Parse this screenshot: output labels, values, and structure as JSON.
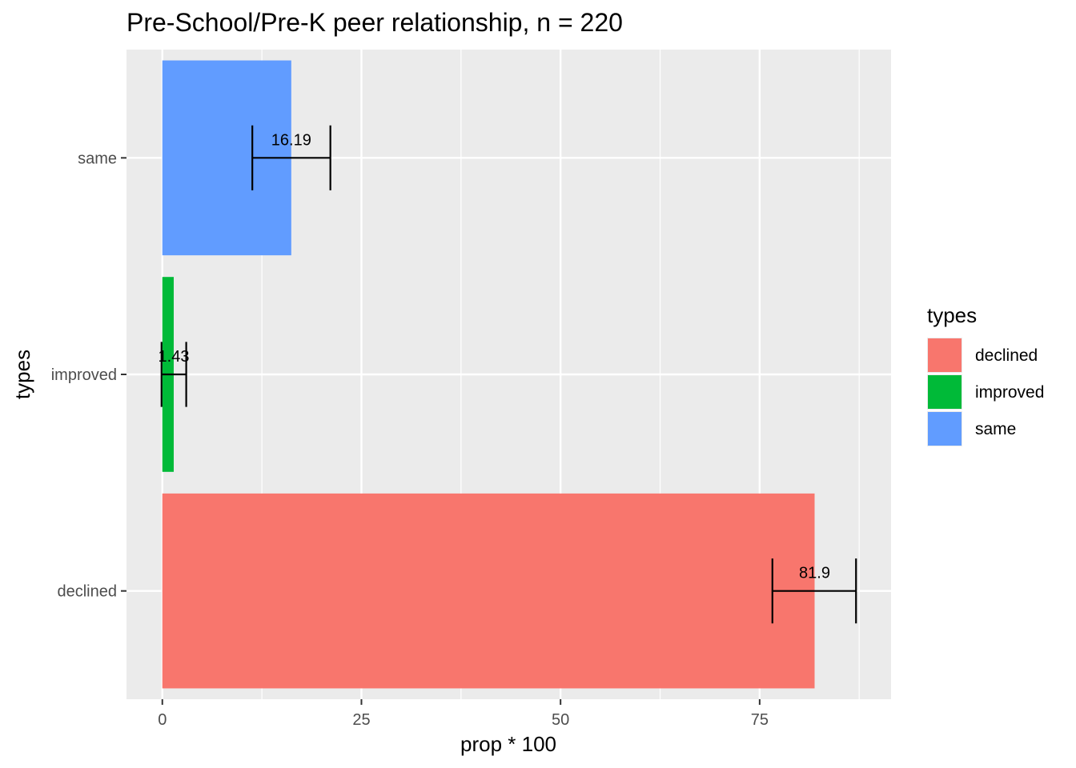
{
  "chart_data": {
    "type": "bar",
    "orientation": "horizontal",
    "title": "Pre-School/Pre-K peer relationship, n = 220",
    "xlabel": "prop * 100",
    "ylabel": "types",
    "categories": [
      "declined",
      "improved",
      "same"
    ],
    "values": [
      81.9,
      1.43,
      16.19
    ],
    "data_labels": [
      "81.9",
      "1.43",
      "16.19"
    ],
    "error_bars": [
      {
        "low": 76.6,
        "high": 87.1
      },
      {
        "low": -0.1,
        "high": 3.0
      },
      {
        "low": 11.3,
        "high": 21.1
      }
    ],
    "colors": [
      "#F8766D",
      "#00BA38",
      "#619CFF"
    ],
    "xlim": [
      -4.5,
      91.5
    ],
    "x_ticks": [
      0,
      25,
      50,
      75
    ],
    "x_tick_labels": [
      "0",
      "25",
      "50",
      "75"
    ],
    "grid": true,
    "panel_background": "#EBEBEB",
    "legend": {
      "title": "types",
      "position": "right",
      "entries": [
        "declined",
        "improved",
        "same"
      ]
    }
  }
}
